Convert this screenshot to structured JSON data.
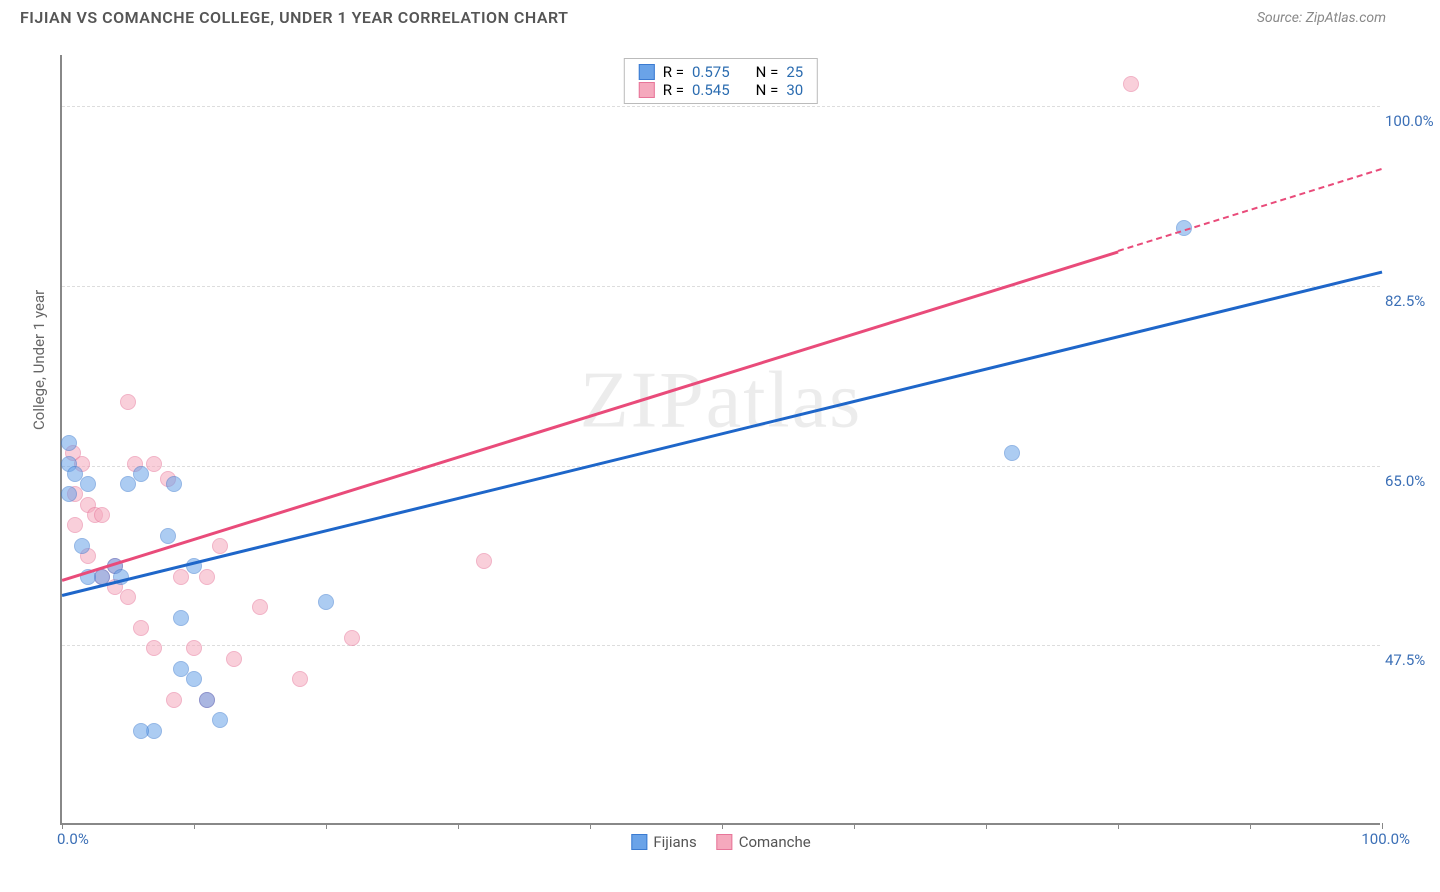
{
  "header": {
    "title": "FIJIAN VS COMANCHE COLLEGE, UNDER 1 YEAR CORRELATION CHART",
    "source": "Source: ZipAtlas.com"
  },
  "watermark": "ZIPatlas",
  "chart": {
    "type": "scatter",
    "ylabel": "College, Under 1 year",
    "xlim": [
      0,
      100
    ],
    "ylim": [
      30,
      105
    ],
    "yticks": [
      {
        "v": 47.5,
        "label": "47.5%"
      },
      {
        "v": 65.0,
        "label": "65.0%"
      },
      {
        "v": 82.5,
        "label": "82.5%"
      },
      {
        "v": 100.0,
        "label": "100.0%"
      }
    ],
    "xtick_label_min": "0.0%",
    "xtick_label_max": "100.0%",
    "xtick_positions": [
      0,
      10,
      20,
      30,
      40,
      50,
      60,
      70,
      80,
      90,
      100
    ],
    "background_color": "#ffffff",
    "grid_color": "#dddddd",
    "axis_color": "#888888",
    "tick_label_color": "#3b6fb6",
    "marker_radius": 8,
    "marker_opacity": 0.55,
    "series": {
      "fijians": {
        "label": "Fijians",
        "color": "#6aa3e8",
        "border": "#3b7bd1",
        "R": "0.575",
        "N": "25",
        "trend": {
          "x1": 0,
          "y1": 52.5,
          "x2": 100,
          "y2": 84.0,
          "color": "#1e66c9",
          "dashed_from": 100
        },
        "points": [
          {
            "x": 0.5,
            "y": 67
          },
          {
            "x": 0.5,
            "y": 65
          },
          {
            "x": 1,
            "y": 64
          },
          {
            "x": 0.5,
            "y": 62
          },
          {
            "x": 2,
            "y": 63
          },
          {
            "x": 1.5,
            "y": 57
          },
          {
            "x": 3,
            "y": 54
          },
          {
            "x": 2,
            "y": 54
          },
          {
            "x": 4,
            "y": 55
          },
          {
            "x": 4.5,
            "y": 54
          },
          {
            "x": 5,
            "y": 63
          },
          {
            "x": 6,
            "y": 64
          },
          {
            "x": 8,
            "y": 58
          },
          {
            "x": 8.5,
            "y": 63
          },
          {
            "x": 10,
            "y": 55
          },
          {
            "x": 9,
            "y": 45
          },
          {
            "x": 9,
            "y": 50
          },
          {
            "x": 10,
            "y": 44
          },
          {
            "x": 11,
            "y": 42
          },
          {
            "x": 12,
            "y": 40
          },
          {
            "x": 7,
            "y": 39
          },
          {
            "x": 6,
            "y": 39
          },
          {
            "x": 20,
            "y": 51.5
          },
          {
            "x": 72,
            "y": 66
          },
          {
            "x": 85,
            "y": 88
          }
        ]
      },
      "comanche": {
        "label": "Comanche",
        "color": "#f5a9bd",
        "border": "#e77599",
        "R": "0.545",
        "N": "30",
        "trend": {
          "x1": 0,
          "y1": 54,
          "x2": 80,
          "y2": 86,
          "color": "#e94b7a",
          "dashed_from": 80,
          "dash_x2": 100,
          "dash_y2": 94
        },
        "points": [
          {
            "x": 0.8,
            "y": 66
          },
          {
            "x": 1.5,
            "y": 65
          },
          {
            "x": 1,
            "y": 62
          },
          {
            "x": 2,
            "y": 61
          },
          {
            "x": 2.5,
            "y": 60
          },
          {
            "x": 1,
            "y": 59
          },
          {
            "x": 3,
            "y": 60
          },
          {
            "x": 2,
            "y": 56
          },
          {
            "x": 3,
            "y": 54
          },
          {
            "x": 4,
            "y": 55
          },
          {
            "x": 4,
            "y": 53
          },
          {
            "x": 5,
            "y": 71
          },
          {
            "x": 5.5,
            "y": 65
          },
          {
            "x": 5,
            "y": 52
          },
          {
            "x": 6,
            "y": 49
          },
          {
            "x": 7,
            "y": 65
          },
          {
            "x": 7,
            "y": 47
          },
          {
            "x": 8,
            "y": 63.5
          },
          {
            "x": 8.5,
            "y": 42
          },
          {
            "x": 9,
            "y": 54
          },
          {
            "x": 10,
            "y": 47
          },
          {
            "x": 11,
            "y": 54
          },
          {
            "x": 11,
            "y": 42
          },
          {
            "x": 12,
            "y": 57
          },
          {
            "x": 13,
            "y": 46
          },
          {
            "x": 15,
            "y": 51
          },
          {
            "x": 18,
            "y": 44
          },
          {
            "x": 22,
            "y": 48
          },
          {
            "x": 32,
            "y": 55.5
          },
          {
            "x": 81,
            "y": 102
          }
        ]
      }
    }
  },
  "legend_top": {
    "r_prefix": "R =",
    "n_prefix": "N ="
  },
  "legend_bottom": {
    "items": [
      "Fijians",
      "Comanche"
    ]
  }
}
